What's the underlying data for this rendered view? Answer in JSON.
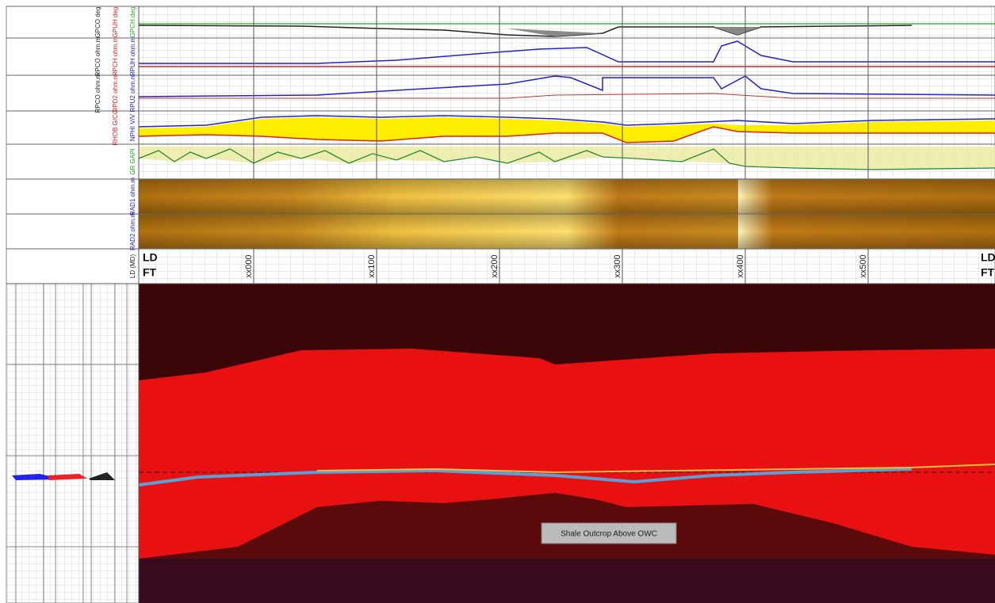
{
  "tracks": [
    {
      "curves": [
        {
          "label": "GPCO deg",
          "color": "#222"
        },
        {
          "label": "GPUH deg",
          "color": "#d22"
        },
        {
          "label": "GPCH deg",
          "color": "#2a2"
        }
      ]
    },
    {
      "curves": [
        {
          "label": "RPCO ohm.m",
          "color": "#222"
        },
        {
          "label": "RPCH ohm.m",
          "color": "#d22"
        },
        {
          "label": "RPUH ohm.m",
          "color": "#22c"
        }
      ]
    },
    {
      "curves": [
        {
          "label": "RPCO ohm.m",
          "color": "#222"
        },
        {
          "label": "RPD2 ohm.m",
          "color": "#d22"
        },
        {
          "label": "RPU2 ohm.m",
          "color": "#22c"
        }
      ]
    },
    {
      "curves": [
        {
          "label": "RHOB G/CC",
          "color": "#d22"
        },
        {
          "label": "NPHI V/V",
          "color": "#22c"
        }
      ]
    },
    {
      "curves": [
        {
          "label": "GR GAPI",
          "color": "#2a2"
        }
      ]
    },
    {
      "curves": [
        {
          "label": "RAD1 ohm.m",
          "color": "#22c"
        }
      ]
    },
    {
      "curves": [
        {
          "label": "RAD2 ohm.m",
          "color": "#22c"
        }
      ]
    },
    {
      "curves": [
        {
          "label": "LD (MD)",
          "color": "#222"
        }
      ]
    }
  ],
  "depth": {
    "name": "LD",
    "unit": "FT",
    "ticks": [
      "xx000",
      "xx100",
      "xx200",
      "xx300",
      "xx400",
      "xx500"
    ]
  },
  "annotation": "Shale Outcrop Above OWC"
}
